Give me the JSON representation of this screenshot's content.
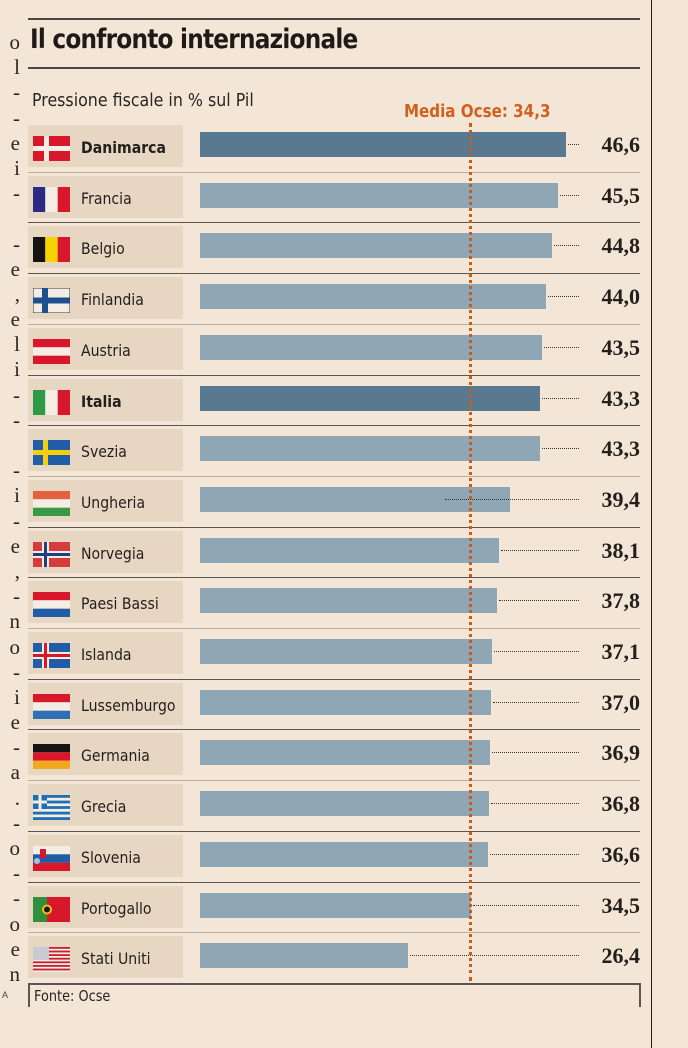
{
  "side_text": {
    "fragments": [
      "o",
      "l",
      "-",
      "-",
      "e",
      "i",
      "-",
      "",
      "-",
      "e",
      ",",
      "e",
      "l",
      "i",
      "-",
      "-",
      "",
      "-",
      "i",
      "-",
      "e",
      ",",
      "-",
      "n",
      "o",
      "-",
      "i",
      "e",
      "-",
      "a",
      ".",
      "-",
      "o",
      "-",
      "-",
      "o",
      "e",
      "n"
    ],
    "credit": "A"
  },
  "chart_data": {
    "type": "bar",
    "orientation": "horizontal",
    "title": "Il confronto internazionale",
    "subtitle": "Pressione fiscale in % sul Pil",
    "xlabel": "",
    "ylabel": "",
    "xlim": [
      0,
      46.6
    ],
    "grid": false,
    "reference_line": {
      "label": "Media Ocse: 34,3",
      "value": 34.3,
      "color": "#c75c1d"
    },
    "colors": {
      "default": "#8fa7b5",
      "highlight": "#58798f"
    },
    "categories": [
      "Danimarca",
      "Francia",
      "Belgio",
      "Finlandia",
      "Austria",
      "Italia",
      "Svezia",
      "Ungheria",
      "Norvegia",
      "Paesi Bassi",
      "Islanda",
      "Lussemburgo",
      "Germania",
      "Grecia",
      "Slovenia",
      "Portogallo",
      "Stati Uniti"
    ],
    "values": [
      46.6,
      45.5,
      44.8,
      44.0,
      43.5,
      43.3,
      43.3,
      39.4,
      38.1,
      37.8,
      37.1,
      37.0,
      36.9,
      36.8,
      36.6,
      34.5,
      26.4
    ],
    "value_labels": [
      "46,6",
      "45,5",
      "44,8",
      "44,0",
      "43,5",
      "43,3",
      "43,3",
      "39,4",
      "38,1",
      "37,8",
      "37,1",
      "37,0",
      "36,9",
      "36,8",
      "36,6",
      "34,5",
      "26,4"
    ],
    "highlighted": [
      "Danimarca",
      "Italia"
    ],
    "flags": [
      "denmark-flag-icon",
      "france-flag-icon",
      "belgium-flag-icon",
      "finland-flag-icon",
      "austria-flag-icon",
      "italy-flag-icon",
      "sweden-flag-icon",
      "hungary-flag-icon",
      "norway-flag-icon",
      "netherlands-flag-icon",
      "iceland-flag-icon",
      "luxembourg-flag-icon",
      "germany-flag-icon",
      "greece-flag-icon",
      "slovenia-flag-icon",
      "portugal-flag-icon",
      "usa-flag-icon"
    ],
    "source": "Fonte: Ocse"
  }
}
